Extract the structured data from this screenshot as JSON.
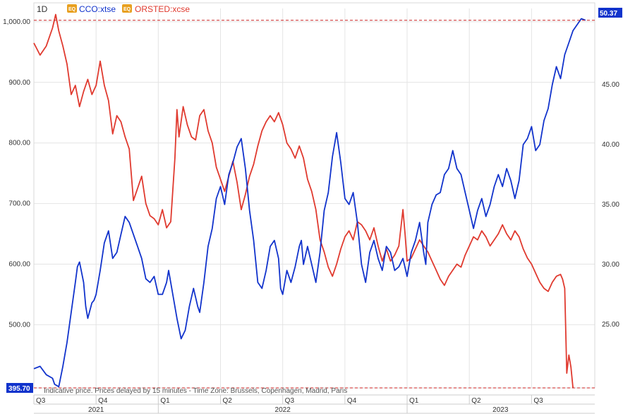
{
  "chart_data": {
    "type": "line",
    "interval": "1D",
    "footnote": "Indicative price. Prices delayed by 15 minutes - Time Zone: Brussels, Copenhagen, Madrid, Paris",
    "left_axis": {
      "ticks": [
        500,
        600,
        700,
        800,
        900,
        1000
      ],
      "tick_labels": [
        "500.00",
        "600.00",
        "700.00",
        "800.00",
        "900.00",
        "1,000.00"
      ],
      "range": [
        395.7,
        1015
      ],
      "current_tag": "395.70"
    },
    "right_axis": {
      "ticks": [
        25,
        30,
        35,
        40,
        45
      ],
      "tick_labels": [
        "25.00",
        "30.00",
        "35.00",
        "40.00",
        "45.00"
      ],
      "range": [
        19.7,
        51
      ],
      "current_tag": "50.37"
    },
    "x_quarters": [
      "Q3",
      "Q4",
      "Q1",
      "Q2",
      "Q3",
      "Q4",
      "Q1",
      "Q2",
      "Q3"
    ],
    "x_years": [
      "2021",
      "2022",
      "2023"
    ],
    "x_range": [
      0,
      27.05
    ],
    "series": [
      {
        "name": "CCO:xtse",
        "axis": "right",
        "color": "#1133cc",
        "points": [
          [
            0,
            21.3
          ],
          [
            0.3,
            21.5
          ],
          [
            0.6,
            20.8
          ],
          [
            0.9,
            20.5
          ],
          [
            1.0,
            20.0
          ],
          [
            1.2,
            19.8
          ],
          [
            1.4,
            21.5
          ],
          [
            1.6,
            23.5
          ],
          [
            1.8,
            26.0
          ],
          [
            2.0,
            28.5
          ],
          [
            2.1,
            29.8
          ],
          [
            2.2,
            30.2
          ],
          [
            2.4,
            28.5
          ],
          [
            2.5,
            26.5
          ],
          [
            2.6,
            25.5
          ],
          [
            2.8,
            26.8
          ],
          [
            2.9,
            27.0
          ],
          [
            3.0,
            27.5
          ],
          [
            3.2,
            29.5
          ],
          [
            3.4,
            31.8
          ],
          [
            3.6,
            32.8
          ],
          [
            3.8,
            30.5
          ],
          [
            4.0,
            31.0
          ],
          [
            4.2,
            32.5
          ],
          [
            4.4,
            34.0
          ],
          [
            4.6,
            33.5
          ],
          [
            4.8,
            32.5
          ],
          [
            5.0,
            31.5
          ],
          [
            5.2,
            30.5
          ],
          [
            5.4,
            28.8
          ],
          [
            5.6,
            28.5
          ],
          [
            5.8,
            29.0
          ],
          [
            6.0,
            27.5
          ],
          [
            6.2,
            27.5
          ],
          [
            6.4,
            28.5
          ],
          [
            6.5,
            29.5
          ],
          [
            6.7,
            27.5
          ],
          [
            6.9,
            25.5
          ],
          [
            7.1,
            23.8
          ],
          [
            7.3,
            24.5
          ],
          [
            7.5,
            26.5
          ],
          [
            7.7,
            28.0
          ],
          [
            7.9,
            26.5
          ],
          [
            8.0,
            26.0
          ],
          [
            8.2,
            28.5
          ],
          [
            8.4,
            31.5
          ],
          [
            8.6,
            33.0
          ],
          [
            8.8,
            35.5
          ],
          [
            9.0,
            36.5
          ],
          [
            9.2,
            35.0
          ],
          [
            9.4,
            37.5
          ],
          [
            9.6,
            38.5
          ],
          [
            9.8,
            39.8
          ],
          [
            10.0,
            40.5
          ],
          [
            10.2,
            38.0
          ],
          [
            10.4,
            34.5
          ],
          [
            10.6,
            32.0
          ],
          [
            10.8,
            28.5
          ],
          [
            11.0,
            28.0
          ],
          [
            11.2,
            29.5
          ],
          [
            11.4,
            31.5
          ],
          [
            11.6,
            32.0
          ],
          [
            11.8,
            30.5
          ],
          [
            11.9,
            28.0
          ],
          [
            12.0,
            27.5
          ],
          [
            12.2,
            29.5
          ],
          [
            12.4,
            28.5
          ],
          [
            12.6,
            29.8
          ],
          [
            12.8,
            31.5
          ],
          [
            12.9,
            32.0
          ],
          [
            13.0,
            30.0
          ],
          [
            13.2,
            31.5
          ],
          [
            13.4,
            30.0
          ],
          [
            13.6,
            28.5
          ],
          [
            13.8,
            31.0
          ],
          [
            14.0,
            34.5
          ],
          [
            14.2,
            36.0
          ],
          [
            14.4,
            39.0
          ],
          [
            14.6,
            41.0
          ],
          [
            14.8,
            38.5
          ],
          [
            15.0,
            35.5
          ],
          [
            15.2,
            35.0
          ],
          [
            15.4,
            36.0
          ],
          [
            15.6,
            33.5
          ],
          [
            15.8,
            30.0
          ],
          [
            16.0,
            28.5
          ],
          [
            16.2,
            31.0
          ],
          [
            16.4,
            32.0
          ],
          [
            16.6,
            30.5
          ],
          [
            16.8,
            29.5
          ],
          [
            17.0,
            31.5
          ],
          [
            17.2,
            31.0
          ],
          [
            17.4,
            29.5
          ],
          [
            17.6,
            29.8
          ],
          [
            17.8,
            30.5
          ],
          [
            18.0,
            29.0
          ],
          [
            18.2,
            31.0
          ],
          [
            18.4,
            32.0
          ],
          [
            18.6,
            33.5
          ],
          [
            18.8,
            31.0
          ],
          [
            18.9,
            30.0
          ],
          [
            19.0,
            33.5
          ],
          [
            19.2,
            35.0
          ],
          [
            19.4,
            35.8
          ],
          [
            19.6,
            36.0
          ],
          [
            19.8,
            37.5
          ],
          [
            20.0,
            38.0
          ],
          [
            20.2,
            39.5
          ],
          [
            20.4,
            38.0
          ],
          [
            20.6,
            37.5
          ],
          [
            20.8,
            36.0
          ],
          [
            21.0,
            34.5
          ],
          [
            21.2,
            33.0
          ],
          [
            21.4,
            34.5
          ],
          [
            21.6,
            35.5
          ],
          [
            21.8,
            34.0
          ],
          [
            22.0,
            35.0
          ],
          [
            22.2,
            36.5
          ],
          [
            22.4,
            37.5
          ],
          [
            22.6,
            36.5
          ],
          [
            22.8,
            38.0
          ],
          [
            23.0,
            37.0
          ],
          [
            23.2,
            35.5
          ],
          [
            23.4,
            37.0
          ],
          [
            23.6,
            40.0
          ],
          [
            23.8,
            40.5
          ],
          [
            24.0,
            41.5
          ],
          [
            24.2,
            39.5
          ],
          [
            24.4,
            40.0
          ],
          [
            24.6,
            42.0
          ],
          [
            24.8,
            43.0
          ],
          [
            25.0,
            45.0
          ],
          [
            25.2,
            46.5
          ],
          [
            25.4,
            45.5
          ],
          [
            25.6,
            47.5
          ],
          [
            25.8,
            48.5
          ],
          [
            26.0,
            49.5
          ],
          [
            26.2,
            50.0
          ],
          [
            26.4,
            50.5
          ],
          [
            26.6,
            50.37
          ]
        ]
      },
      {
        "name": "ORSTED:xcse",
        "axis": "left",
        "color": "#e03a2f",
        "points": [
          [
            0,
            965
          ],
          [
            0.3,
            945
          ],
          [
            0.6,
            960
          ],
          [
            0.9,
            990
          ],
          [
            1.05,
            1012
          ],
          [
            1.2,
            985
          ],
          [
            1.4,
            960
          ],
          [
            1.6,
            930
          ],
          [
            1.8,
            880
          ],
          [
            2.0,
            895
          ],
          [
            2.2,
            860
          ],
          [
            2.4,
            885
          ],
          [
            2.6,
            905
          ],
          [
            2.8,
            880
          ],
          [
            3.0,
            895
          ],
          [
            3.2,
            935
          ],
          [
            3.4,
            895
          ],
          [
            3.6,
            870
          ],
          [
            3.8,
            815
          ],
          [
            4.0,
            845
          ],
          [
            4.2,
            835
          ],
          [
            4.4,
            810
          ],
          [
            4.6,
            790
          ],
          [
            4.8,
            705
          ],
          [
            5.0,
            725
          ],
          [
            5.2,
            745
          ],
          [
            5.4,
            700
          ],
          [
            5.6,
            680
          ],
          [
            5.8,
            675
          ],
          [
            6.0,
            665
          ],
          [
            6.2,
            690
          ],
          [
            6.4,
            660
          ],
          [
            6.6,
            670
          ],
          [
            6.8,
            775
          ],
          [
            6.9,
            855
          ],
          [
            7.0,
            810
          ],
          [
            7.2,
            860
          ],
          [
            7.4,
            830
          ],
          [
            7.6,
            810
          ],
          [
            7.8,
            805
          ],
          [
            8.0,
            845
          ],
          [
            8.2,
            855
          ],
          [
            8.4,
            820
          ],
          [
            8.6,
            800
          ],
          [
            8.8,
            760
          ],
          [
            9.0,
            740
          ],
          [
            9.2,
            720
          ],
          [
            9.4,
            745
          ],
          [
            9.6,
            770
          ],
          [
            9.8,
            735
          ],
          [
            10.0,
            690
          ],
          [
            10.2,
            715
          ],
          [
            10.4,
            745
          ],
          [
            10.6,
            765
          ],
          [
            10.8,
            795
          ],
          [
            11.0,
            820
          ],
          [
            11.2,
            835
          ],
          [
            11.4,
            845
          ],
          [
            11.6,
            835
          ],
          [
            11.8,
            850
          ],
          [
            12.0,
            830
          ],
          [
            12.2,
            800
          ],
          [
            12.4,
            790
          ],
          [
            12.6,
            775
          ],
          [
            12.8,
            795
          ],
          [
            13.0,
            775
          ],
          [
            13.2,
            740
          ],
          [
            13.4,
            720
          ],
          [
            13.6,
            690
          ],
          [
            13.8,
            640
          ],
          [
            14.0,
            620
          ],
          [
            14.2,
            595
          ],
          [
            14.4,
            580
          ],
          [
            14.6,
            600
          ],
          [
            14.8,
            625
          ],
          [
            15.0,
            645
          ],
          [
            15.2,
            655
          ],
          [
            15.4,
            640
          ],
          [
            15.6,
            670
          ],
          [
            15.8,
            665
          ],
          [
            16.0,
            655
          ],
          [
            16.2,
            640
          ],
          [
            16.4,
            660
          ],
          [
            16.6,
            630
          ],
          [
            16.8,
            605
          ],
          [
            17.0,
            625
          ],
          [
            17.2,
            605
          ],
          [
            17.4,
            615
          ],
          [
            17.6,
            630
          ],
          [
            17.8,
            690
          ],
          [
            17.9,
            650
          ],
          [
            18.0,
            605
          ],
          [
            18.2,
            610
          ],
          [
            18.4,
            625
          ],
          [
            18.6,
            640
          ],
          [
            18.8,
            630
          ],
          [
            19.0,
            620
          ],
          [
            19.2,
            605
          ],
          [
            19.4,
            590
          ],
          [
            19.6,
            575
          ],
          [
            19.8,
            565
          ],
          [
            20.0,
            580
          ],
          [
            20.2,
            590
          ],
          [
            20.4,
            600
          ],
          [
            20.6,
            595
          ],
          [
            20.8,
            615
          ],
          [
            21.0,
            630
          ],
          [
            21.2,
            645
          ],
          [
            21.4,
            640
          ],
          [
            21.6,
            655
          ],
          [
            21.8,
            645
          ],
          [
            22.0,
            630
          ],
          [
            22.2,
            640
          ],
          [
            22.4,
            650
          ],
          [
            22.6,
            665
          ],
          [
            22.8,
            650
          ],
          [
            23.0,
            640
          ],
          [
            23.2,
            655
          ],
          [
            23.4,
            645
          ],
          [
            23.6,
            625
          ],
          [
            23.8,
            610
          ],
          [
            24.0,
            600
          ],
          [
            24.2,
            585
          ],
          [
            24.4,
            570
          ],
          [
            24.6,
            560
          ],
          [
            24.8,
            555
          ],
          [
            25.0,
            570
          ],
          [
            25.2,
            580
          ],
          [
            25.4,
            583
          ],
          [
            25.5,
            575
          ],
          [
            25.6,
            560
          ],
          [
            25.7,
            420
          ],
          [
            25.8,
            450
          ],
          [
            25.9,
            430
          ],
          [
            26.0,
            395.7
          ]
        ]
      }
    ]
  }
}
